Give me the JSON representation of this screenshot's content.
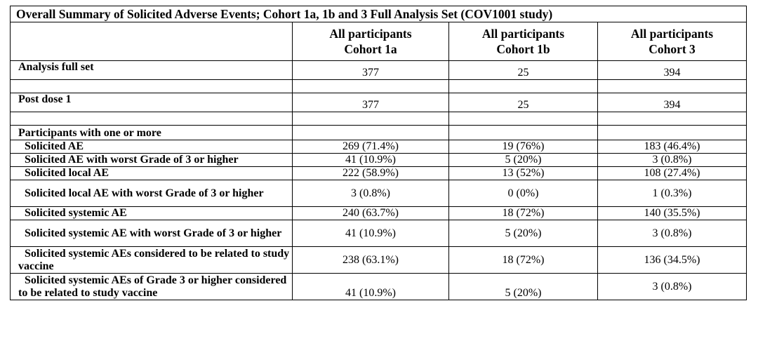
{
  "title": "Overall Summary of Solicited Adverse Events; Cohort 1a, 1b and 3 Full Analysis Set (COV1001 study)",
  "columns": [
    {
      "line1": "All participants",
      "line2": "Cohort 1a"
    },
    {
      "line1": "All participants",
      "line2": "Cohort 1b"
    },
    {
      "line1": "All participants",
      "line2": "Cohort 3"
    }
  ],
  "rows": {
    "analysis_full_set": {
      "label": "Analysis full set",
      "values": [
        "377",
        "25",
        "394"
      ]
    },
    "post_dose_1": {
      "label": "Post dose 1",
      "values": [
        "377",
        "25",
        "394"
      ]
    },
    "participants_header": {
      "label": "Participants with one or more"
    },
    "solicited_ae": {
      "label": "Solicited AE",
      "values": [
        "269 (71.4%)",
        "19 (76%)",
        "183 (46.4%)"
      ]
    },
    "solicited_ae_grade3": {
      "label": "Solicited AE with worst Grade of 3 or higher",
      "values": [
        "41 (10.9%)",
        "5 (20%)",
        "3 (0.8%)"
      ]
    },
    "solicited_local_ae": {
      "label": "Solicited local AE",
      "values": [
        "222 (58.9%)",
        "13 (52%)",
        "108 (27.4%)"
      ]
    },
    "solicited_local_ae_grade3": {
      "label": "Solicited local AE with worst Grade of 3 or higher",
      "values": [
        "3 (0.8%)",
        "0 (0%)",
        "1 (0.3%)"
      ]
    },
    "solicited_systemic_ae": {
      "label": "Solicited systemic AE",
      "values": [
        "240 (63.7%)",
        "18 (72%)",
        "140 (35.5%)"
      ]
    },
    "solicited_systemic_ae_grade3": {
      "label": "Solicited systemic AE with worst Grade of 3 or higher",
      "values": [
        "41 (10.9%)",
        "5 (20%)",
        "3 (0.8%)"
      ]
    },
    "solicited_systemic_related": {
      "label": "Solicited systemic AEs considered to be related to study vaccine",
      "values": [
        "238 (63.1%)",
        "18 (72%)",
        "136 (34.5%)"
      ]
    },
    "solicited_systemic_grade3_related": {
      "label": "Solicited systemic AEs of Grade 3 or higher considered to be related to study vaccine",
      "values": [
        "41 (10.9%)",
        "5 (20%)",
        "3 (0.8%)"
      ]
    }
  }
}
